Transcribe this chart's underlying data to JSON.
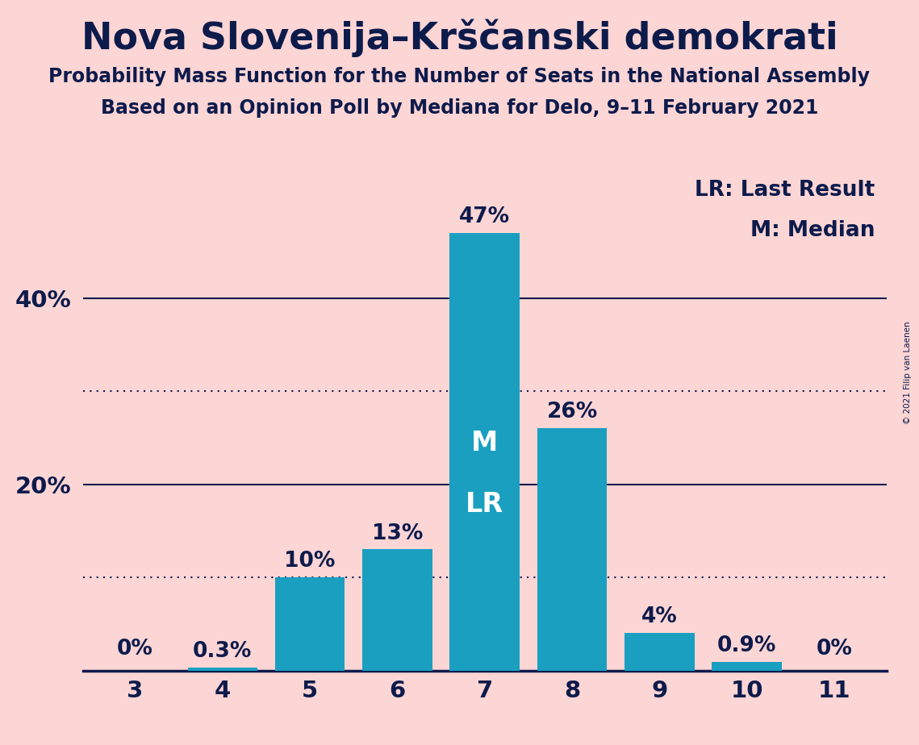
{
  "title": "Nova Slovenija–Krščanski demokrati",
  "subtitle1": "Probability Mass Function for the Number of Seats in the National Assembly",
  "subtitle2": "Based on an Opinion Poll by Mediana for Delo, 9–11 February 2021",
  "copyright": "© 2021 Filip van Laenen",
  "categories": [
    3,
    4,
    5,
    6,
    7,
    8,
    9,
    10,
    11
  ],
  "values": [
    0.0,
    0.3,
    10.0,
    13.0,
    47.0,
    26.0,
    4.0,
    0.9,
    0.0
  ],
  "bar_color": "#1a9fc0",
  "background_color": "#fcd5d5",
  "text_color": "#0d1b4b",
  "bar_label_color_light": "#ffffff",
  "median_seat": 7,
  "last_result_seat": 7,
  "median_label": "M",
  "last_result_label": "LR",
  "legend_lr": "LR: Last Result",
  "legend_m": "M: Median",
  "solid_lines": [
    20.0,
    40.0
  ],
  "dotted_lines": [
    10.0,
    30.0
  ],
  "ylim": [
    0,
    54
  ],
  "yticks": [
    20,
    40
  ],
  "ytick_labels": [
    "20%",
    "40%"
  ]
}
